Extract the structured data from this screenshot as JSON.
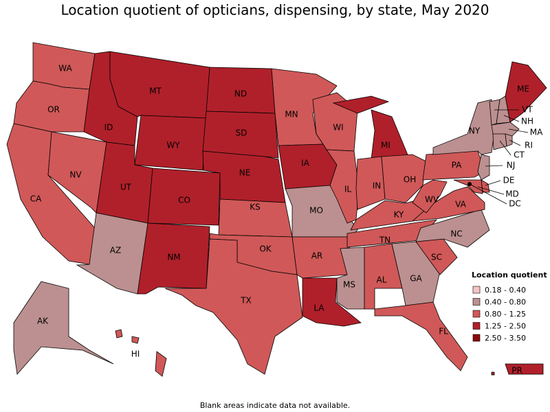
{
  "title": "Location quotient of opticians, dispensing, by state, May 2020",
  "legend": {
    "title": "Location quotient",
    "items": [
      {
        "label": "0.18 - 0.40",
        "color": "#f5c4c4"
      },
      {
        "label": "0.40 - 0.80",
        "color": "#bc9090"
      },
      {
        "label": "0.80 - 1.25",
        "color": "#d05858"
      },
      {
        "label": "1.25 - 2.50",
        "color": "#b0202a"
      },
      {
        "label": "2.50 - 3.50",
        "color": "#8a0a0a"
      }
    ]
  },
  "states": [
    {
      "abbr": "WA",
      "range": "0.80 - 1.25"
    },
    {
      "abbr": "OR",
      "range": "0.80 - 1.25"
    },
    {
      "abbr": "CA",
      "range": "0.80 - 1.25"
    },
    {
      "abbr": "NV",
      "range": "0.80 - 1.25"
    },
    {
      "abbr": "ID",
      "range": "1.25 - 2.50"
    },
    {
      "abbr": "MT",
      "range": "1.25 - 2.50"
    },
    {
      "abbr": "WY",
      "range": "1.25 - 2.50"
    },
    {
      "abbr": "UT",
      "range": "1.25 - 2.50"
    },
    {
      "abbr": "CO",
      "range": "1.25 - 2.50"
    },
    {
      "abbr": "AZ",
      "range": "0.40 - 0.80"
    },
    {
      "abbr": "NM",
      "range": "1.25 - 2.50"
    },
    {
      "abbr": "ND",
      "range": "1.25 - 2.50"
    },
    {
      "abbr": "SD",
      "range": "1.25 - 2.50"
    },
    {
      "abbr": "NE",
      "range": "1.25 - 2.50"
    },
    {
      "abbr": "KS",
      "range": "0.80 - 1.25"
    },
    {
      "abbr": "OK",
      "range": "0.80 - 1.25"
    },
    {
      "abbr": "TX",
      "range": "0.80 - 1.25"
    },
    {
      "abbr": "MN",
      "range": "0.80 - 1.25"
    },
    {
      "abbr": "IA",
      "range": "1.25 - 2.50"
    },
    {
      "abbr": "MO",
      "range": "0.40 - 0.80"
    },
    {
      "abbr": "AR",
      "range": "0.80 - 1.25"
    },
    {
      "abbr": "LA",
      "range": "1.25 - 2.50"
    },
    {
      "abbr": "WI",
      "range": "0.80 - 1.25"
    },
    {
      "abbr": "IL",
      "range": "0.80 - 1.25"
    },
    {
      "abbr": "MI",
      "range": "1.25 - 2.50"
    },
    {
      "abbr": "IN",
      "range": "0.80 - 1.25"
    },
    {
      "abbr": "OH",
      "range": "0.80 - 1.25"
    },
    {
      "abbr": "KY",
      "range": "0.80 - 1.25"
    },
    {
      "abbr": "TN",
      "range": "0.80 - 1.25"
    },
    {
      "abbr": "MS",
      "range": "0.40 - 0.80"
    },
    {
      "abbr": "AL",
      "range": "0.80 - 1.25"
    },
    {
      "abbr": "GA",
      "range": "0.40 - 0.80"
    },
    {
      "abbr": "FL",
      "range": "0.80 - 1.25"
    },
    {
      "abbr": "SC",
      "range": "0.80 - 1.25"
    },
    {
      "abbr": "NC",
      "range": "0.40 - 0.80"
    },
    {
      "abbr": "VA",
      "range": "0.80 - 1.25"
    },
    {
      "abbr": "WV",
      "range": "0.80 - 1.25"
    },
    {
      "abbr": "PA",
      "range": "0.80 - 1.25"
    },
    {
      "abbr": "NY",
      "range": "0.40 - 0.80"
    },
    {
      "abbr": "NJ",
      "range": "0.40 - 0.80"
    },
    {
      "abbr": "DE",
      "range": "0.80 - 1.25"
    },
    {
      "abbr": "MD",
      "range": "0.80 - 1.25"
    },
    {
      "abbr": "DC",
      "range": "0.80 - 1.25"
    },
    {
      "abbr": "VT",
      "range": "0.40 - 0.80"
    },
    {
      "abbr": "NH",
      "range": "0.40 - 0.80"
    },
    {
      "abbr": "ME",
      "range": "1.25 - 2.50"
    },
    {
      "abbr": "MA",
      "range": "0.40 - 0.80"
    },
    {
      "abbr": "CT",
      "range": "0.40 - 0.80"
    },
    {
      "abbr": "RI",
      "range": "0.40 - 0.80"
    },
    {
      "abbr": "AK",
      "range": "0.40 - 0.80"
    },
    {
      "abbr": "HI",
      "range": "0.80 - 1.25"
    },
    {
      "abbr": "PR",
      "range": "1.25 - 2.50"
    }
  ],
  "footnote": "Blank areas indicate data not available."
}
